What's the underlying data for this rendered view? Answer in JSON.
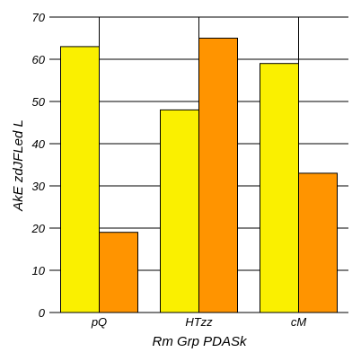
{
  "chart_data": {
    "type": "bar",
    "categories": [
      "pQ",
      "HTzz",
      "cM"
    ],
    "series": [
      {
        "values": [
          63,
          48,
          59
        ],
        "color": "#FAF000"
      },
      {
        "values": [
          19,
          65,
          33
        ],
        "color": "#FF9400"
      }
    ],
    "xlabel": "Rm Grp PDASk",
    "ylabel": "AkE zdJFLed L",
    "ylim": [
      0,
      70
    ],
    "yticks": [
      0,
      10,
      20,
      30,
      40,
      50,
      60,
      70
    ],
    "grid": true,
    "legend": "none"
  }
}
